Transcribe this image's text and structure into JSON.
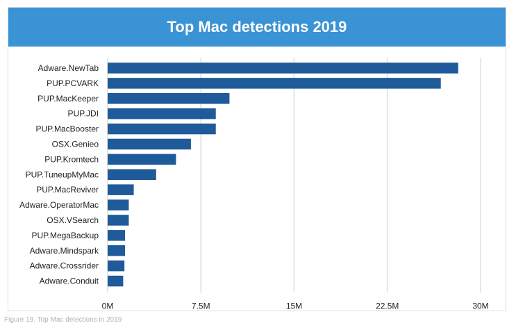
{
  "chart_data": {
    "type": "bar",
    "orientation": "horizontal",
    "title": "Top Mac detections 2019",
    "categories": [
      "Adware.NewTab",
      "PUP.PCVARK",
      "PUP.MacKeeper",
      "PUP.JDI",
      "PUP.MacBooster",
      "OSX.Genieo",
      "PUP.Kromtech",
      "PUP.TuneupMyMac",
      "PUP.MacReviver",
      "Adware.OperatorMac",
      "OSX.VSearch",
      "PUP.MegaBackup",
      "Adware.Mindspark",
      "Adware.Crossrider",
      "Adware.Conduit"
    ],
    "values": [
      28200000,
      26800000,
      9800000,
      8700000,
      8700000,
      6700000,
      5500000,
      3900000,
      2100000,
      1700000,
      1700000,
      1400000,
      1400000,
      1350000,
      1250000
    ],
    "xlim": [
      0,
      30000000
    ],
    "xticks": [
      0,
      7500000,
      15000000,
      22500000,
      30000000
    ],
    "xtick_labels": [
      "0M",
      "7.5M",
      "15M",
      "22.5M",
      "30M"
    ],
    "grid": "vertical",
    "bar_color": "#1f5a9a",
    "header_color": "#3a93d4"
  },
  "caption": "Figure 19. Top Mac detections in 2019"
}
